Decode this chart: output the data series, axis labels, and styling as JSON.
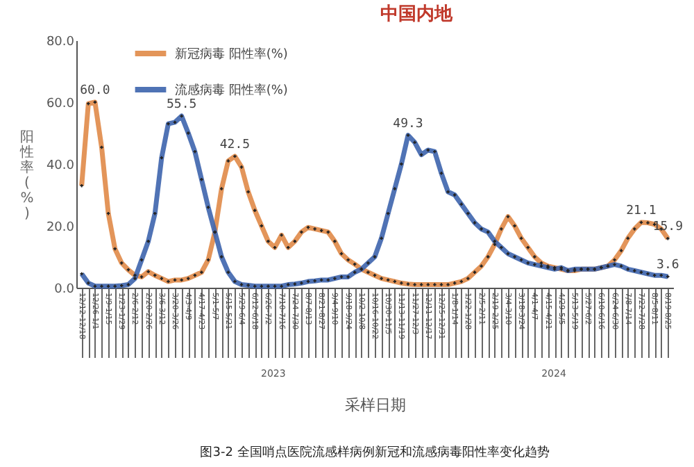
{
  "chart_data": {
    "type": "line",
    "title": "中国内地",
    "ylabel": "阳性率(%)",
    "xlabel": "采样日期",
    "annotations": [
      "图3-2 全国哨点医院流感样病例新冠和流感病毒阳性率变化趋势",
      "2023",
      "2024"
    ],
    "categories": [
      "12/12-12/18",
      null,
      "12/26-1/1",
      null,
      "1/9-1/15",
      null,
      "1/23-1/29",
      null,
      "2/6-2/12",
      null,
      "2/20-2/26",
      null,
      "3/6-3/12",
      null,
      "3/20-3/26",
      null,
      "4/3-4/9",
      null,
      "4/17-4/23",
      null,
      "5/1-5/7",
      null,
      "5/15-5/21",
      null,
      "5/29-6/4",
      null,
      "6/12-6/18",
      null,
      "6/26-7/2",
      null,
      "7/10-7/16",
      null,
      "7/24-7/30",
      null,
      "8/7-8/13",
      null,
      "8/21-8/27",
      null,
      "9/4-9/10",
      null,
      "9/18-9/24",
      null,
      "10/2-10/8",
      null,
      "10/16-10/22",
      null,
      "10/30-11/5",
      null,
      "11/13-11/19",
      null,
      "11/27-12/3",
      null,
      "12/11-12/17",
      null,
      "12/25-12/31",
      null,
      "1/8-1/14",
      null,
      "1/22-1/28",
      null,
      "2/5-2/11",
      null,
      "2/19-2/25",
      null,
      "3/4-3/10",
      null,
      "3/18-3/24",
      null,
      "4/1-4/7",
      null,
      "4/15-4/21",
      null,
      "4/29-5/5",
      null,
      "5/13-5/19",
      null,
      "5/27-6/2",
      null,
      "6/10-6/16",
      null,
      "6/24-6/30",
      null,
      "7/8-7/14",
      null,
      "7/22-7/28",
      null,
      "8/5-8/11",
      null,
      "8/19-8/25"
    ],
    "series": [
      {
        "name": "新冠病毒 阳性率(%)",
        "color": "#e08a48",
        "values": [
          33,
          59.5,
          60.0,
          45.4,
          24,
          12.6,
          8,
          5.8,
          4,
          3.5,
          5.2,
          4,
          3,
          2,
          2.5,
          2.5,
          3,
          4,
          5,
          9,
          18,
          32,
          41,
          42.5,
          39,
          31,
          25,
          20,
          15,
          13,
          17,
          13,
          15,
          18,
          19.5,
          19,
          18.5,
          18,
          15,
          11,
          9,
          7.6,
          6,
          5,
          4,
          3,
          2.5,
          2,
          1.5,
          1.2,
          1,
          1,
          1,
          1,
          1,
          1,
          1.5,
          2,
          3,
          5,
          7,
          10,
          14,
          19,
          23,
          20,
          16,
          13,
          10,
          8,
          7,
          6.5,
          6,
          5.5,
          5.5,
          6,
          6,
          6,
          6.5,
          7,
          9,
          12,
          16,
          19,
          21.1,
          21,
          20.5,
          19,
          15.9
        ],
        "value_labels": [
          null,
          null,
          "60.0",
          null,
          null,
          null,
          null,
          null,
          null,
          null,
          null,
          null,
          null,
          null,
          null,
          null,
          null,
          null,
          null,
          null,
          null,
          null,
          null,
          "42.5",
          null,
          null,
          null,
          null,
          null,
          null,
          null,
          null,
          null,
          null,
          null,
          null,
          null,
          null,
          null,
          null,
          null,
          null,
          null,
          null,
          null,
          null,
          null,
          null,
          null,
          null,
          null,
          null,
          null,
          null,
          null,
          null,
          null,
          null,
          null,
          null,
          null,
          null,
          null,
          null,
          null,
          null,
          null,
          null,
          null,
          null,
          null,
          null,
          null,
          null,
          null,
          null,
          null,
          null,
          null,
          null,
          null,
          null,
          null,
          null,
          "21.1",
          null,
          null,
          null,
          "15.9"
        ]
      },
      {
        "name": "流感病毒 阳性率(%)",
        "color": "#3d64ad",
        "values": [
          4.5,
          1.5,
          0.5,
          0.5,
          0.5,
          0.5,
          0.7,
          1,
          3,
          9,
          15,
          24,
          42,
          53,
          53.5,
          55.5,
          50,
          44,
          35,
          26,
          18,
          10,
          5,
          2,
          1,
          0.8,
          0.5,
          0.5,
          0.5,
          0.5,
          0.5,
          1,
          1.2,
          1.5,
          2,
          2.2,
          2.5,
          2.5,
          3,
          3.5,
          3.5,
          5,
          6,
          8,
          10,
          16,
          24,
          32,
          40,
          49.3,
          47,
          43,
          44.5,
          44,
          37,
          31,
          30,
          27,
          24,
          21,
          19,
          18,
          15,
          13,
          11,
          10,
          9,
          8,
          7.5,
          7,
          6.5,
          6,
          6.5,
          5.5,
          6,
          6,
          6,
          6,
          6.5,
          7,
          7.5,
          7,
          6,
          5.5,
          5,
          4.5,
          4,
          4,
          3.6
        ],
        "value_labels": [
          null,
          null,
          null,
          null,
          null,
          null,
          null,
          null,
          null,
          null,
          null,
          null,
          null,
          null,
          null,
          "55.5",
          null,
          null,
          null,
          null,
          null,
          null,
          null,
          null,
          null,
          null,
          null,
          null,
          null,
          null,
          null,
          null,
          null,
          null,
          null,
          null,
          null,
          null,
          null,
          null,
          null,
          null,
          null,
          null,
          null,
          null,
          null,
          null,
          null,
          "49.3",
          null,
          null,
          null,
          null,
          null,
          null,
          null,
          null,
          null,
          null,
          null,
          null,
          null,
          null,
          null,
          null,
          null,
          null,
          null,
          null,
          null,
          null,
          null,
          null,
          null,
          null,
          null,
          null,
          null,
          null,
          null,
          null,
          null,
          null,
          null,
          null,
          null,
          null,
          "3.6"
        ]
      }
    ],
    "ylim": [
      0,
      80
    ],
    "yticks": [
      {
        "value": 0,
        "label": "0.0"
      },
      {
        "value": 20,
        "label": "20.0"
      },
      {
        "value": 40,
        "label": "40.0"
      },
      {
        "value": 60,
        "label": "60.0"
      },
      {
        "value": 80,
        "label": "80.0"
      }
    ],
    "marker": "cross",
    "legend": "top left",
    "grid": false,
    "line_style": "solid"
  }
}
